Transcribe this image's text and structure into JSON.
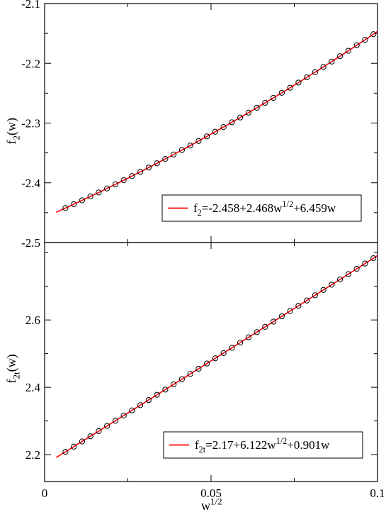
{
  "chart_data": [
    {
      "type": "scatter",
      "panel": "top",
      "xlabel": "",
      "ylabel": {
        "base": "f",
        "sub": "2",
        "rest": "(w)"
      },
      "xlim": [
        0,
        0.1
      ],
      "ylim": [
        -2.5,
        -2.1
      ],
      "yticks": [
        {
          "value": -2.1,
          "label": "-2.1"
        },
        {
          "value": -2.2,
          "label": "-2.2"
        },
        {
          "value": -2.3,
          "label": "-2.3"
        },
        {
          "value": -2.4,
          "label": "-2.4"
        },
        {
          "value": -2.5,
          "label": "-2.5"
        }
      ],
      "fit": {
        "c0": -2.458,
        "c1": 2.468,
        "c2": 6.459,
        "color": "#ff0000"
      },
      "points": {
        "x_start": 0.00625,
        "x_step": 0.0025,
        "x_end": 0.1,
        "extra_x": [
          0.01125,
          0.01375,
          0.01625,
          0.01875
        ],
        "marker": "circle",
        "color": "#000000"
      },
      "legend": {
        "position": "bottom-right",
        "label": {
          "base": "f",
          "sub": "2",
          "eq": "=-2.458+2.468w",
          "sup": "1/2",
          "tail": "+6.459w"
        }
      }
    },
    {
      "type": "scatter",
      "panel": "bottom",
      "xlabel": {
        "base": "w",
        "sup": "1/2"
      },
      "ylabel": {
        "base": "f",
        "sub": "2t",
        "rest": "(w)"
      },
      "xlim": [
        0,
        0.1
      ],
      "ylim": [
        2.12,
        2.83
      ],
      "xticks": [
        {
          "value": 0,
          "label": "0"
        },
        {
          "value": 0.05,
          "label": "0.05"
        },
        {
          "value": 0.1,
          "label": "0.1"
        }
      ],
      "yticks": [
        {
          "value": 2.2,
          "label": "2.2"
        },
        {
          "value": 2.4,
          "label": "2.4"
        },
        {
          "value": 2.6,
          "label": "2.6"
        }
      ],
      "fit": {
        "c0": 2.17,
        "c1": 6.122,
        "c2": 0.901,
        "color": "#ff0000"
      },
      "points": {
        "x_start": 0.00625,
        "x_step": 0.0025,
        "x_end": 0.1,
        "extra_x": [
          0.01125,
          0.01375,
          0.01625,
          0.01875
        ],
        "marker": "circle",
        "color": "#000000"
      },
      "legend": {
        "position": "bottom-right",
        "label": {
          "base": "f",
          "sub": "2t",
          "eq": "=2.17+6.122w",
          "sup": "1/2",
          "tail": "+0.901w"
        }
      }
    }
  ]
}
